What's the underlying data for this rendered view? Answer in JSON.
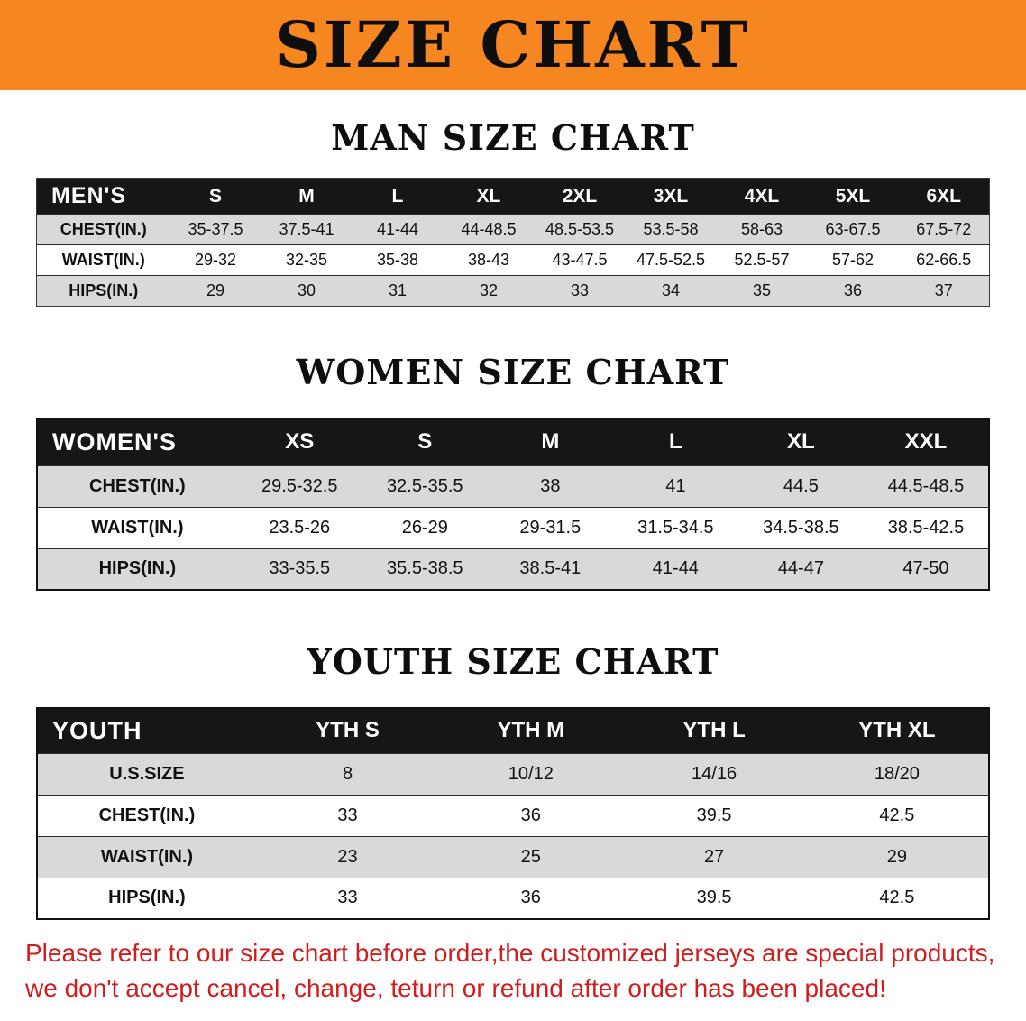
{
  "banner": {
    "title": "SIZE CHART"
  },
  "colors": {
    "banner_bg": "#f6861f",
    "header_bg": "#161616",
    "shade_row": "#d9d9d9",
    "note_red": "#d01d1d"
  },
  "men": {
    "heading": "MAN SIZE CHART",
    "corner": "MEN'S",
    "columns": [
      "S",
      "M",
      "L",
      "XL",
      "2XL",
      "3XL",
      "4XL",
      "5XL",
      "6XL"
    ],
    "rows": [
      {
        "label": "CHEST(IN.)",
        "values": [
          "35-37.5",
          "37.5-41",
          "41-44",
          "44-48.5",
          "48.5-53.5",
          "53.5-58",
          "58-63",
          "63-67.5",
          "67.5-72"
        ]
      },
      {
        "label": "WAIST(IN.)",
        "values": [
          "29-32",
          "32-35",
          "35-38",
          "38-43",
          "43-47.5",
          "47.5-52.5",
          "52.5-57",
          "57-62",
          "62-66.5"
        ]
      },
      {
        "label": "HIPS(IN.)",
        "values": [
          "29",
          "30",
          "31",
          "32",
          "33",
          "34",
          "35",
          "36",
          "37"
        ]
      }
    ]
  },
  "women": {
    "heading": "WOMEN SIZE CHART",
    "corner": "WOMEN'S",
    "columns": [
      "XS",
      "S",
      "M",
      "L",
      "XL",
      "XXL"
    ],
    "rows": [
      {
        "label": "CHEST(IN.)",
        "values": [
          "29.5-32.5",
          "32.5-35.5",
          "38",
          "41",
          "44.5",
          "44.5-48.5"
        ]
      },
      {
        "label": "WAIST(IN.)",
        "values": [
          "23.5-26",
          "26-29",
          "29-31.5",
          "31.5-34.5",
          "34.5-38.5",
          "38.5-42.5"
        ]
      },
      {
        "label": "HIPS(IN.)",
        "values": [
          "33-35.5",
          "35.5-38.5",
          "38.5-41",
          "41-44",
          "44-47",
          "47-50"
        ]
      }
    ]
  },
  "youth": {
    "heading": "YOUTH SIZE CHART",
    "corner": "YOUTH",
    "columns": [
      "YTH S",
      "YTH M",
      "YTH L",
      "YTH XL"
    ],
    "rows": [
      {
        "label": "U.S.SIZE",
        "values": [
          "8",
          "10/12",
          "14/16",
          "18/20"
        ]
      },
      {
        "label": "CHEST(IN.)",
        "values": [
          "33",
          "36",
          "39.5",
          "42.5"
        ]
      },
      {
        "label": "WAIST(IN.)",
        "values": [
          "23",
          "25",
          "27",
          "29"
        ]
      },
      {
        "label": "HIPS(IN.)",
        "values": [
          "33",
          "36",
          "39.5",
          "42.5"
        ]
      }
    ]
  },
  "note": {
    "line1": "Please refer to our size chart before order,the customized jerseys are special products,",
    "line2": "we don't accept cancel, change, teturn or refund after order has been placed!"
  }
}
